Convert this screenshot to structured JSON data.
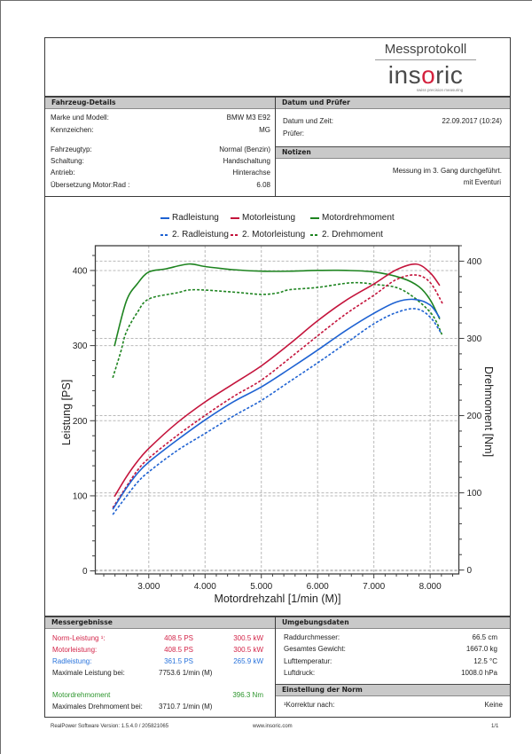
{
  "header": {
    "title": "Messprotokoll",
    "logo_before": "ins",
    "logo_accent": "o",
    "logo_after": "ric",
    "logo_tagline": "swiss precision measuring"
  },
  "vehicle": {
    "title": "Fahrzeug-Details",
    "rows": [
      {
        "label": "Marke und Modell:",
        "value": "BMW M3 E92"
      },
      {
        "label": "Kennzeichen:",
        "value": "MG"
      },
      {
        "label": "Fahrzeugtyp:",
        "value": "Normal (Benzin)"
      },
      {
        "label": "Schaltung:",
        "value": "Handschaltung"
      },
      {
        "label": "Antrieb:",
        "value": "Hinterachse"
      },
      {
        "label": "Übersetzung Motor:Rad :",
        "value": "6.08"
      }
    ]
  },
  "date": {
    "title": "Datum und Prüfer",
    "rows": [
      {
        "label": "Datum und Zeit:",
        "value": "22.09.2017 (10:24)"
      },
      {
        "label": "Prüfer:",
        "value": ""
      }
    ]
  },
  "notes": {
    "title": "Notizen",
    "lines": [
      "Messung im 3. Gang durchgeführt.",
      "mit Eventuri"
    ]
  },
  "results": {
    "title": "Messergebnisse",
    "norm_power": {
      "label": "Norm-Leistung ¹:",
      "ps": "408.5 PS",
      "kw": "300.5 kW"
    },
    "engine_power": {
      "label": "Motorleistung:",
      "ps": "408.5 PS",
      "kw": "300.5 kW"
    },
    "wheel_power": {
      "label": "Radleistung:",
      "ps": "361.5 PS",
      "kw": "265.9 kW"
    },
    "max_power_at": {
      "label": "Maximale Leistung bei:",
      "value": "7753.6 1/min (M)"
    },
    "engine_torque": {
      "label": "Motordrehmoment",
      "value": "396.3 Nm"
    },
    "max_torque_at": {
      "label": "Maximales Drehmoment bei:",
      "value": "3710.7 1/min (M)"
    }
  },
  "environment": {
    "title": "Umgebungsdaten",
    "rows": [
      {
        "label": "Raddurchmesser:",
        "value": "66.5 cm"
      },
      {
        "label": "Gesamtes Gewicht:",
        "value": "1667.0 kg"
      },
      {
        "label": "Lufttemperatur:",
        "value": "12.5 °C"
      },
      {
        "label": "Luftdruck:",
        "value": "1008.0 hPa"
      }
    ]
  },
  "norm": {
    "title": "Einstellung der Norm",
    "label": "¹Korrektur nach:",
    "value": "Keine"
  },
  "footer": {
    "version": "RealPower Software Version: 1.5.4.0 / 205821065",
    "website": "www.insoric.com",
    "page": "1/1"
  },
  "colors": {
    "engine_power": "#d3264a",
    "wheel_power": "#2a74dc",
    "torque": "#2e962e",
    "logo_accent": "#d4213d",
    "section_bar": "#c9c9c9"
  },
  "chart_data": {
    "type": "line",
    "title": "",
    "xlabel": "Motordrehzahl [1/min (M)]",
    "ylabel": "Leistung [PS]",
    "y2label": "Drehmoment [Nm]",
    "xlim": [
      2050,
      8510
    ],
    "ylim": [
      -4,
      433
    ],
    "y2lim": [
      -5,
      420
    ],
    "xticks": [
      3000,
      4000,
      5000,
      6000,
      7000,
      8000
    ],
    "xtick_labels": [
      "3.000",
      "4.000",
      "5.000",
      "6.000",
      "7.000",
      "8.000"
    ],
    "yticks": [
      0,
      100,
      200,
      300,
      400
    ],
    "ytick_labels": [
      "0",
      "100",
      "200",
      "300",
      "400"
    ],
    "y2ticks": [
      0,
      100,
      200,
      300,
      400
    ],
    "y2tick_labels": [
      "0",
      "100",
      "200",
      "300",
      "400"
    ],
    "x_minor_step": 200,
    "y_minor_step": 20,
    "y2_minor_step": 20,
    "grid": true,
    "legend_position": "top",
    "series": [
      {
        "name": "Radleistung",
        "axis": "left",
        "style": "solid",
        "color": "#1e62d2",
        "x": [
          2360,
          2600,
          2800,
          3000,
          3500,
          4000,
          4500,
          5000,
          5500,
          6000,
          6500,
          7000,
          7400,
          7725,
          8000,
          8170
        ],
        "y": [
          82,
          110,
          130,
          145,
          174,
          201,
          225,
          245,
          269,
          294,
          320,
          343,
          358,
          361.5,
          354,
          337
        ]
      },
      {
        "name": "Motorleistung",
        "axis": "left",
        "style": "solid",
        "color": "#c4143c",
        "x": [
          2390,
          2600,
          2800,
          3000,
          3500,
          4000,
          4500,
          5000,
          5500,
          6000,
          6500,
          7000,
          7400,
          7754,
          8000,
          8170
        ],
        "y": [
          99,
          125,
          146,
          163,
          197,
          225,
          249,
          273,
          302,
          333,
          360,
          382,
          401,
          408.5,
          397,
          380
        ]
      },
      {
        "name": "Motordrehmoment",
        "axis": "right",
        "style": "solid",
        "color": "#1e8420",
        "x": [
          2390,
          2600,
          2800,
          3000,
          3300,
          3711,
          4000,
          4500,
          5000,
          5500,
          6000,
          6500,
          7000,
          7500,
          7800,
          8000,
          8170
        ],
        "y": [
          290,
          348,
          371,
          386,
          390,
          396.3,
          393,
          389,
          387,
          387,
          388,
          388,
          386,
          378,
          367,
          350,
          325
        ]
      },
      {
        "name": "2. Radleistung",
        "axis": "left",
        "style": "dashed",
        "color": "#1e62d2",
        "x": [
          2360,
          2600,
          2800,
          3000,
          3500,
          4000,
          4500,
          5000,
          5500,
          6000,
          6500,
          7000,
          7400,
          7750,
          8000,
          8200
        ],
        "y": [
          75,
          99,
          118,
          132,
          160,
          183,
          206,
          227,
          252,
          277,
          303,
          329,
          344,
          349,
          338,
          316
        ]
      },
      {
        "name": "2. Motorleistung",
        "axis": "left",
        "style": "dashed",
        "color": "#c4143c",
        "x": [
          2360,
          2600,
          2800,
          3000,
          3500,
          4000,
          4500,
          5000,
          5500,
          6000,
          6500,
          7000,
          7400,
          7750,
          8000,
          8220
        ],
        "y": [
          84,
          112,
          134,
          150,
          180,
          207,
          232,
          254,
          283,
          313,
          342,
          367,
          388,
          394,
          384,
          356
        ]
      },
      {
        "name": "2. Drehmoment",
        "axis": "right",
        "style": "dashed",
        "color": "#1e8420",
        "x": [
          2360,
          2500,
          2600,
          2800,
          3000,
          3500,
          3800,
          4500,
          5000,
          5300,
          5500,
          6000,
          6600,
          7000,
          7500,
          8000,
          8210
        ],
        "y": [
          249,
          282,
          308,
          334,
          351,
          359,
          363,
          360,
          357,
          359,
          363,
          366,
          372,
          370,
          363,
          334,
          305
        ]
      }
    ]
  }
}
